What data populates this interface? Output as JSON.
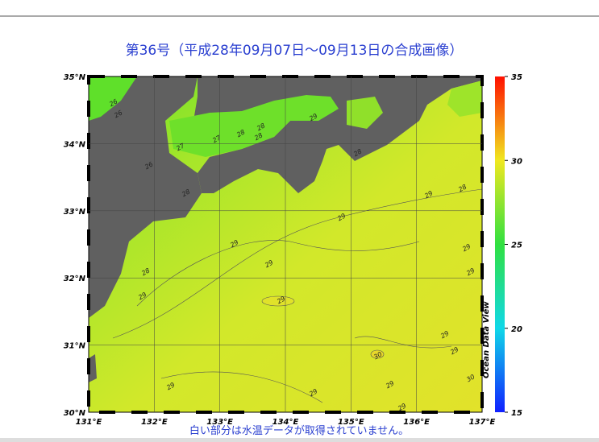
{
  "title": "第36号（平成28年09月07日〜09月13日の合成画像）",
  "latitudes": [
    "35°N",
    "34°N",
    "33°N",
    "32°N",
    "31°N",
    "30°N"
  ],
  "longitudes": [
    "131°E",
    "132°E",
    "133°E",
    "134°E",
    "135°E",
    "136°E",
    "137°E"
  ],
  "colorbar": {
    "range": [
      15,
      35
    ],
    "ticks": [
      35,
      30,
      25,
      20,
      15
    ]
  },
  "contour_labels": [
    "26",
    "27",
    "28",
    "26",
    "27",
    "28",
    "29",
    "28",
    "28",
    "28",
    "29",
    "29",
    "29",
    "29",
    "28",
    "29",
    "29",
    "29",
    "29",
    "29",
    "29",
    "30",
    "29",
    "29",
    "29",
    "30",
    "29",
    "26",
    "28"
  ],
  "credit": "Ocean Data View",
  "note": "白い部分は水温データが取得されていません。"
}
